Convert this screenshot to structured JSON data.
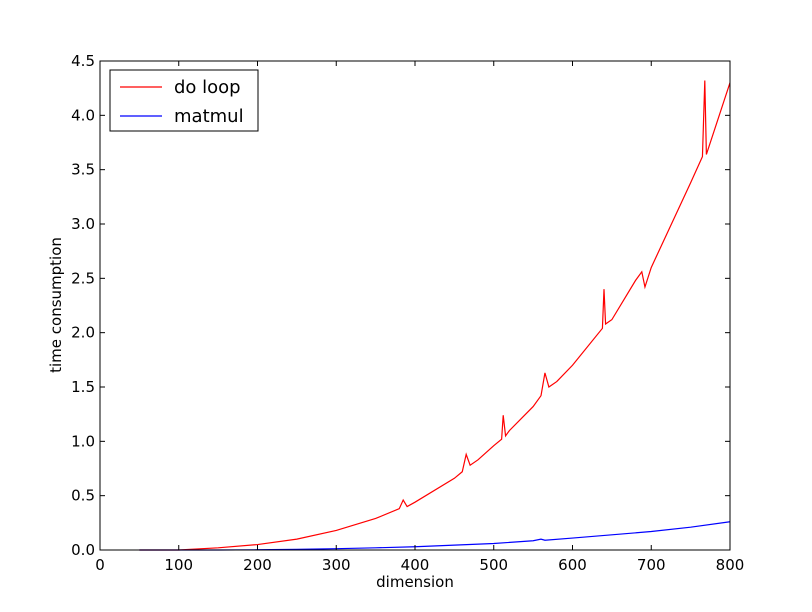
{
  "chart_data": {
    "type": "line",
    "title": "",
    "xlabel": "dimension",
    "ylabel": "time consumption",
    "xlim": [
      0,
      800
    ],
    "ylim": [
      0,
      4.5
    ],
    "xticks": [
      "0",
      "100",
      "200",
      "300",
      "400",
      "500",
      "600",
      "700",
      "800"
    ],
    "yticks": [
      "0.0",
      "0.5",
      "1.0",
      "1.5",
      "2.0",
      "2.5",
      "3.0",
      "3.5",
      "4.0",
      "4.5"
    ],
    "grid": false,
    "legend_position": "top-left",
    "series": [
      {
        "name": "do loop",
        "color": "#ff0000",
        "x": [
          50,
          100,
          150,
          200,
          250,
          300,
          350,
          380,
          385,
          390,
          400,
          450,
          460,
          465,
          470,
          480,
          500,
          510,
          512,
          515,
          520,
          550,
          560,
          565,
          570,
          580,
          600,
          638,
          640,
          642,
          650,
          680,
          688,
          692,
          700,
          750,
          765,
          768,
          770,
          780,
          800
        ],
        "y": [
          0.0,
          0.0,
          0.02,
          0.05,
          0.1,
          0.18,
          0.29,
          0.38,
          0.46,
          0.4,
          0.44,
          0.66,
          0.72,
          0.88,
          0.78,
          0.83,
          0.96,
          1.02,
          1.24,
          1.05,
          1.1,
          1.32,
          1.42,
          1.63,
          1.5,
          1.55,
          1.7,
          2.04,
          2.4,
          2.08,
          2.12,
          2.48,
          2.56,
          2.42,
          2.6,
          3.38,
          3.62,
          4.32,
          3.64,
          3.86,
          4.3
        ]
      },
      {
        "name": "matmul",
        "color": "#0000ff",
        "x": [
          50,
          100,
          150,
          200,
          250,
          300,
          350,
          400,
          450,
          500,
          550,
          560,
          565,
          600,
          650,
          700,
          750,
          800
        ],
        "y": [
          0.0,
          0.0,
          0.0,
          0.002,
          0.006,
          0.012,
          0.02,
          0.03,
          0.045,
          0.06,
          0.085,
          0.1,
          0.09,
          0.11,
          0.14,
          0.17,
          0.21,
          0.26
        ]
      }
    ]
  }
}
